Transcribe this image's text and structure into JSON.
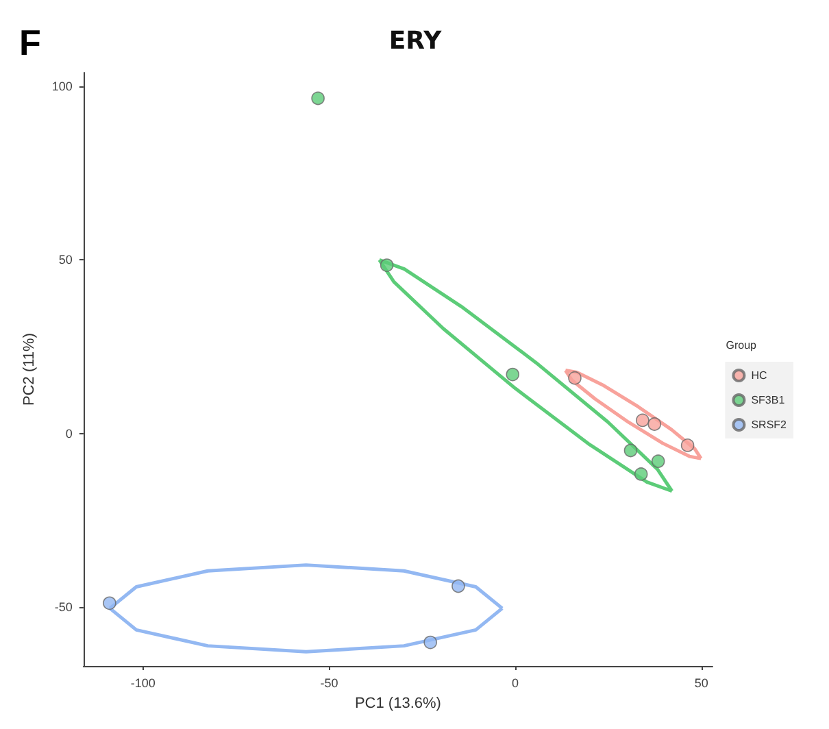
{
  "chart_data": {
    "type": "scatter",
    "title": "ERY",
    "xlabel": "PC1 (13.6%)",
    "ylabel": "PC2 (11%)",
    "legend_title": "Group",
    "annotations": [
      "F"
    ],
    "xlim": [
      -116,
      53
    ],
    "ylim": [
      -67,
      104
    ],
    "xticks": [
      -100,
      -50,
      0,
      50
    ],
    "yticks": [
      -50,
      0,
      50,
      100
    ],
    "grid": false,
    "legend": "right",
    "marker": "circle",
    "series": [
      {
        "name": "HC",
        "color": "#f8a29b",
        "x": [
          16,
          34.2,
          37.4,
          46.3
        ],
        "values": [
          16,
          3.8,
          2.7,
          -3.4
        ]
      },
      {
        "name": "SF3B1",
        "color": "#5ccc78",
        "x": [
          -53,
          -34.5,
          -0.7,
          31,
          33.8,
          38.4
        ],
        "values": [
          96.6,
          48.5,
          17,
          -4.9,
          -11.7,
          -8
        ]
      },
      {
        "name": "SRSF2",
        "color": "#93b8f2",
        "x": [
          -109,
          -15.3,
          -22.8
        ],
        "values": [
          -48.9,
          -44,
          -60.2
        ]
      },
      {
        "type": "line",
        "marker": "none",
        "color": "#f8a29b",
        "x": [
          13.5,
          15.2,
          21.4,
          30.35,
          39.6,
          46.8,
          49.9
        ],
        "values": [
          18.2,
          15.4,
          10.0,
          3.3,
          -2.8,
          -6.6,
          -7.2
        ]
      },
      {
        "type": "line",
        "marker": "none",
        "color": "#f8a29b",
        "x": [
          13.5,
          16.6,
          23.8,
          33.05,
          42.0,
          48.2,
          49.9
        ],
        "values": [
          18.2,
          17.6,
          13.8,
          7.7,
          1.1,
          -4.4,
          -7.2
        ]
      },
      {
        "type": "line",
        "marker": "none",
        "color": "#5ccc78",
        "x": [
          -36.5,
          -32.6,
          -19.3,
          0,
          20.0,
          35.4,
          42.1
        ],
        "values": [
          50.0,
          43.7,
          30.2,
          13.0,
          -3.2,
          -14.0,
          -16.6
        ]
      },
      {
        "type": "line",
        "marker": "none",
        "color": "#5ccc78",
        "x": [
          -36.5,
          -29.8,
          -14.5,
          5.6,
          24.9,
          38.2,
          42.1
        ],
        "values": [
          50.0,
          47.4,
          36.6,
          20.4,
          3.3,
          -10.3,
          -16.6
        ]
      },
      {
        "type": "line",
        "marker": "none",
        "color": "#93b8f2",
        "x": [
          -108.9,
          -101.8,
          -82.6,
          -56.2,
          -29.9,
          -10.6,
          -3.5
        ],
        "values": [
          -50.4,
          -44.2,
          -39.6,
          -37.9,
          -39.6,
          -44.2,
          -50.4
        ]
      },
      {
        "type": "line",
        "marker": "none",
        "color": "#93b8f2",
        "x": [
          -108.9,
          -101.8,
          -82.6,
          -56.2,
          -29.9,
          -10.6,
          -3.5
        ],
        "values": [
          -50.4,
          -56.6,
          -61.2,
          -62.9,
          -61.2,
          -56.6,
          -50.4
        ]
      }
    ]
  }
}
